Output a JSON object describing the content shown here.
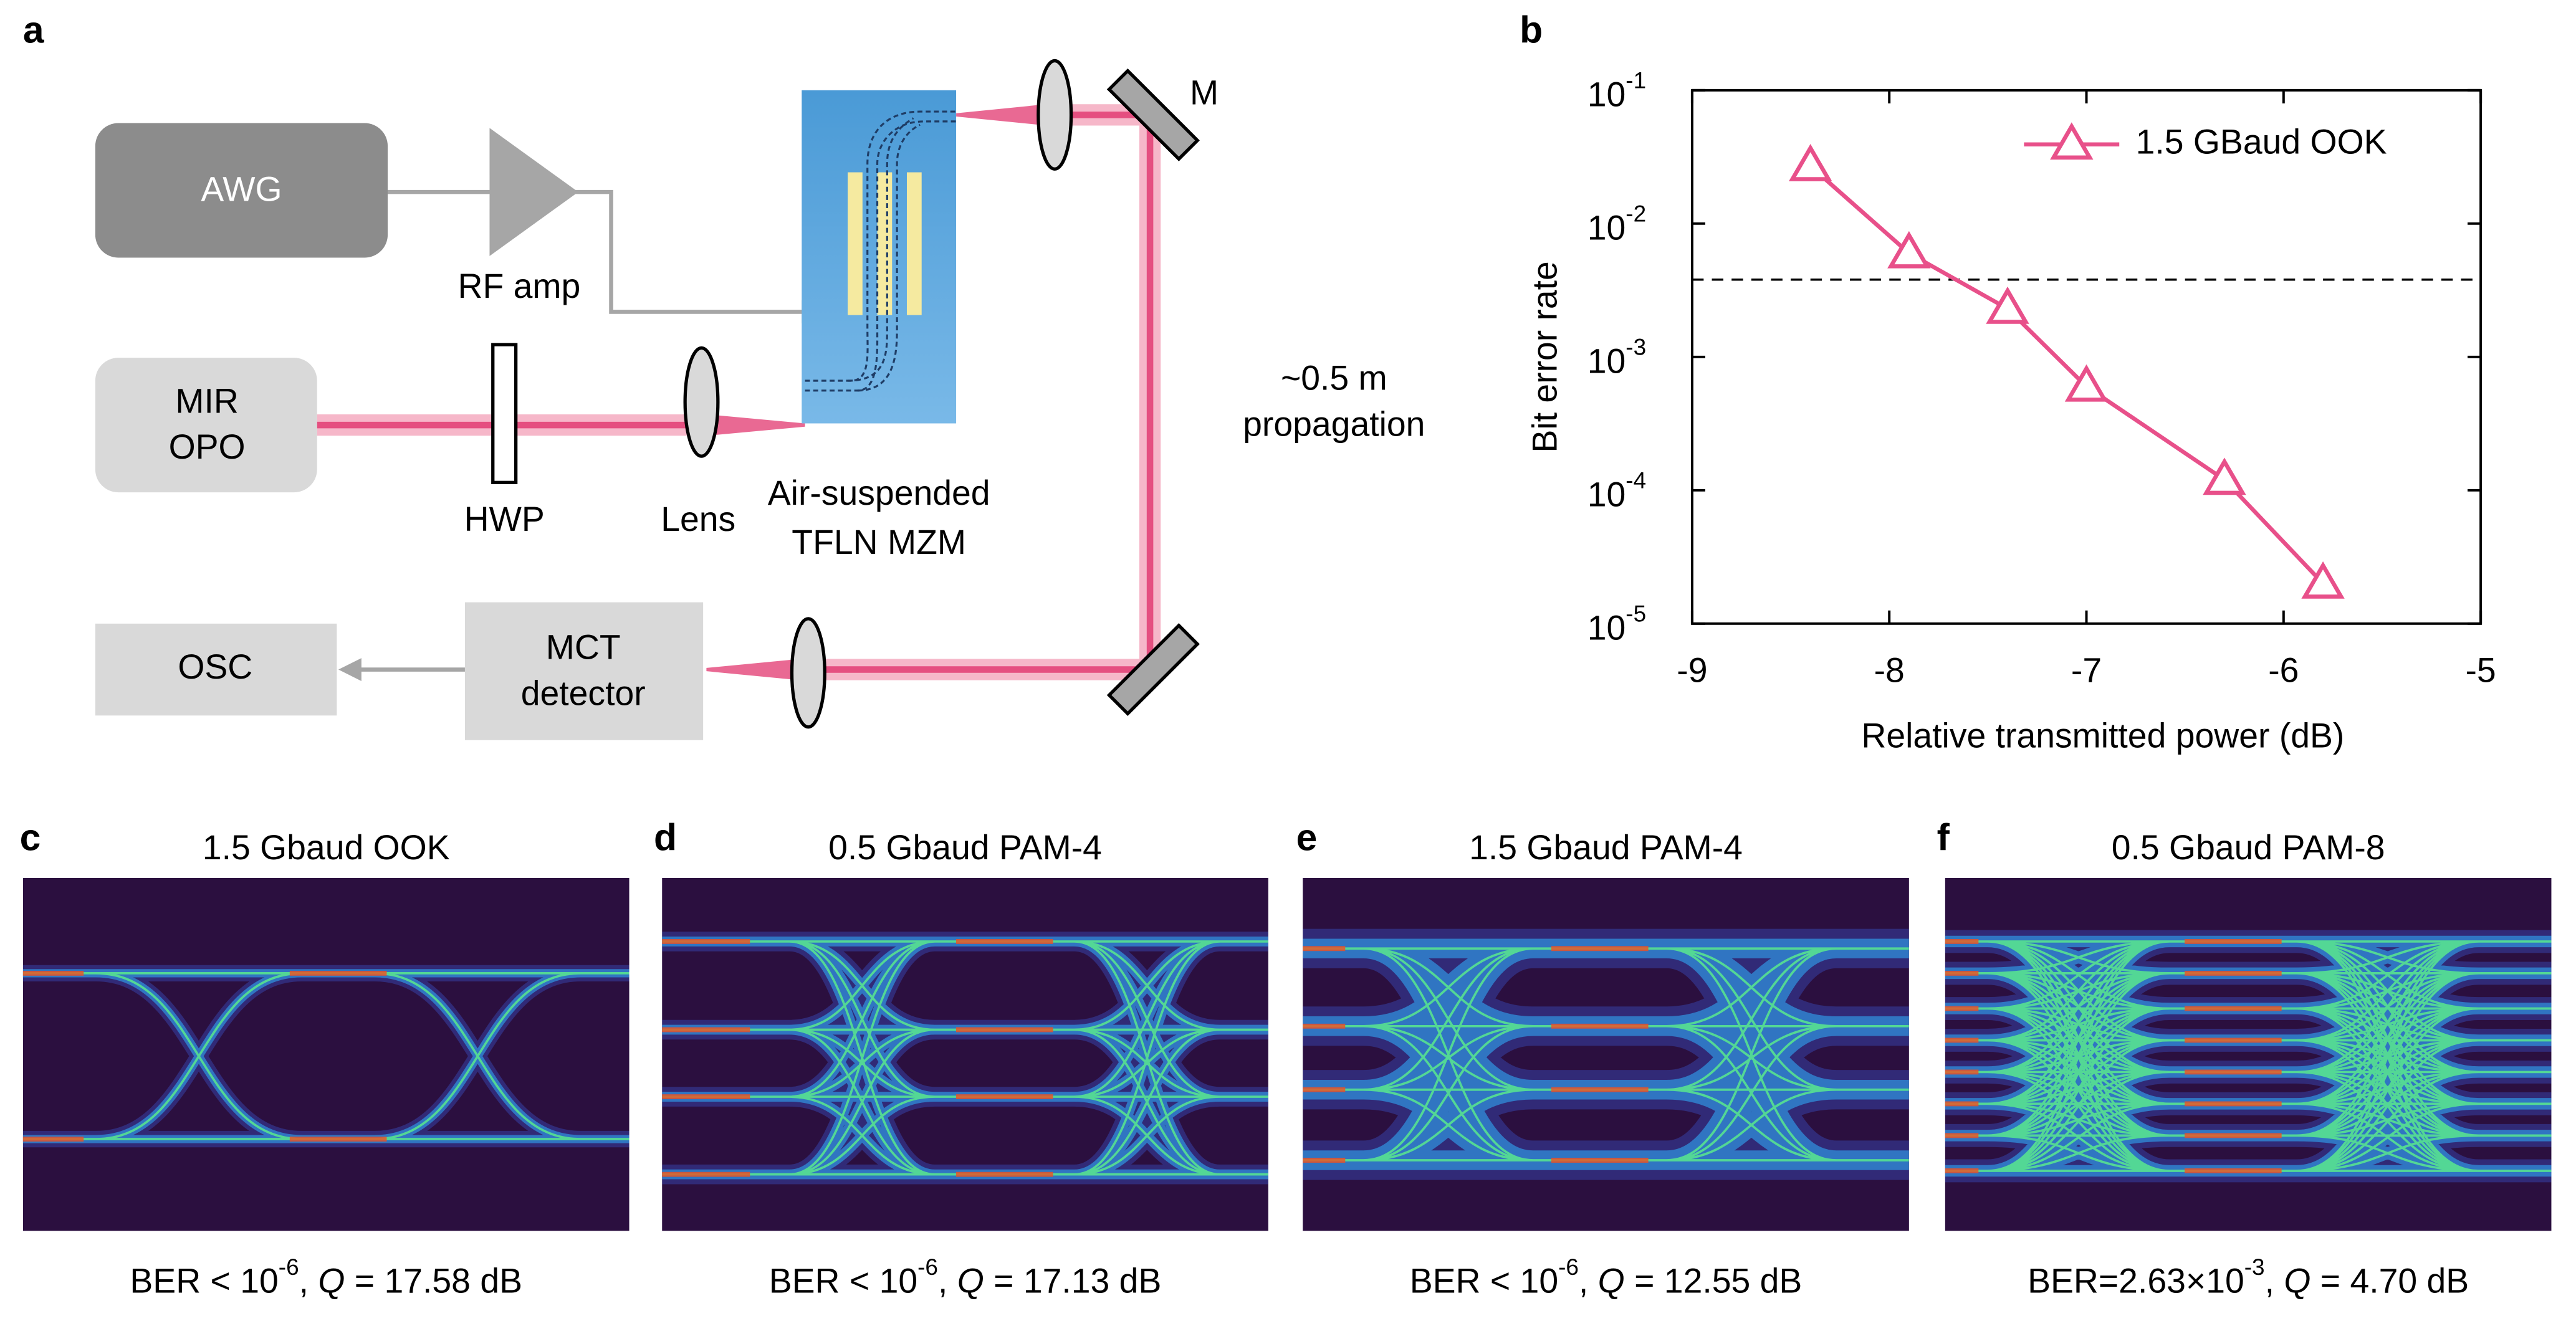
{
  "panel_labels": [
    "a",
    "b",
    "c",
    "d",
    "e",
    "f"
  ],
  "diagram": {
    "awg": "AWG",
    "rf_amp": "RF amp",
    "mir_opo": [
      "MIR",
      "OPO"
    ],
    "hwp": "HWP",
    "lens": "Lens",
    "modulator": [
      "Air-suspended",
      "TFLN MZM"
    ],
    "mirror": "M",
    "propagation": [
      "~0.5 m",
      "propagation"
    ],
    "detector": [
      "MCT",
      "detector"
    ],
    "osc": "OSC"
  },
  "chart_data": {
    "type": "line",
    "xlabel": "Relative transmitted power (dB)",
    "ylabel": "Bit error rate",
    "x": [
      -8.4,
      -7.9,
      -7.4,
      -7.0,
      -6.3,
      -5.8
    ],
    "series": [
      {
        "name": "1.5 GBaud OOK",
        "color": "#e8508a",
        "marker": "triangle",
        "values": [
          0.027,
          0.006,
          0.0023,
          0.0006,
          0.00012,
          2e-05
        ]
      }
    ],
    "reference_line": 0.0038,
    "xlim": [
      -9,
      -5
    ],
    "xticks": [
      -9,
      -8,
      -7,
      -6,
      -5
    ],
    "ylim": [
      1e-05,
      0.1
    ],
    "yticks": [
      {
        "value": 1e-05,
        "label": "10",
        "exponent": "-5"
      },
      {
        "value": 0.0001,
        "label": "10",
        "exponent": "-4"
      },
      {
        "value": 0.001,
        "label": "10",
        "exponent": "-3"
      },
      {
        "value": 0.01,
        "label": "10",
        "exponent": "-2"
      },
      {
        "value": 0.1,
        "label": "10",
        "exponent": "-1"
      }
    ],
    "log_y": true,
    "legend": "upper right"
  },
  "eye_diagrams": [
    {
      "title": "1.5 Gbaud OOK",
      "caption": {
        "ber": "BER < 10",
        "ber_exponent": "-6",
        "separator": ", ",
        "q_symbol": "Q",
        "q_value": " = 17.58 dB"
      }
    },
    {
      "title": "0.5 Gbaud PAM-4",
      "caption": {
        "ber": "BER < 10",
        "ber_exponent": "-6",
        "separator": ", ",
        "q_symbol": "Q",
        "q_value": " = 17.13 dB"
      }
    },
    {
      "title": "1.5 Gbaud PAM-4",
      "caption": {
        "ber": "BER < 10",
        "ber_exponent": "-6",
        "separator": ", ",
        "q_symbol": "Q",
        "q_value": " = 12.55 dB"
      }
    },
    {
      "title": "0.5 Gbaud PAM-8",
      "caption": {
        "ber": "BER=2.63×10",
        "ber_exponent": "-3",
        "separator": ", ",
        "q_symbol": "Q",
        "q_value": " = 4.70 dB"
      }
    }
  ]
}
